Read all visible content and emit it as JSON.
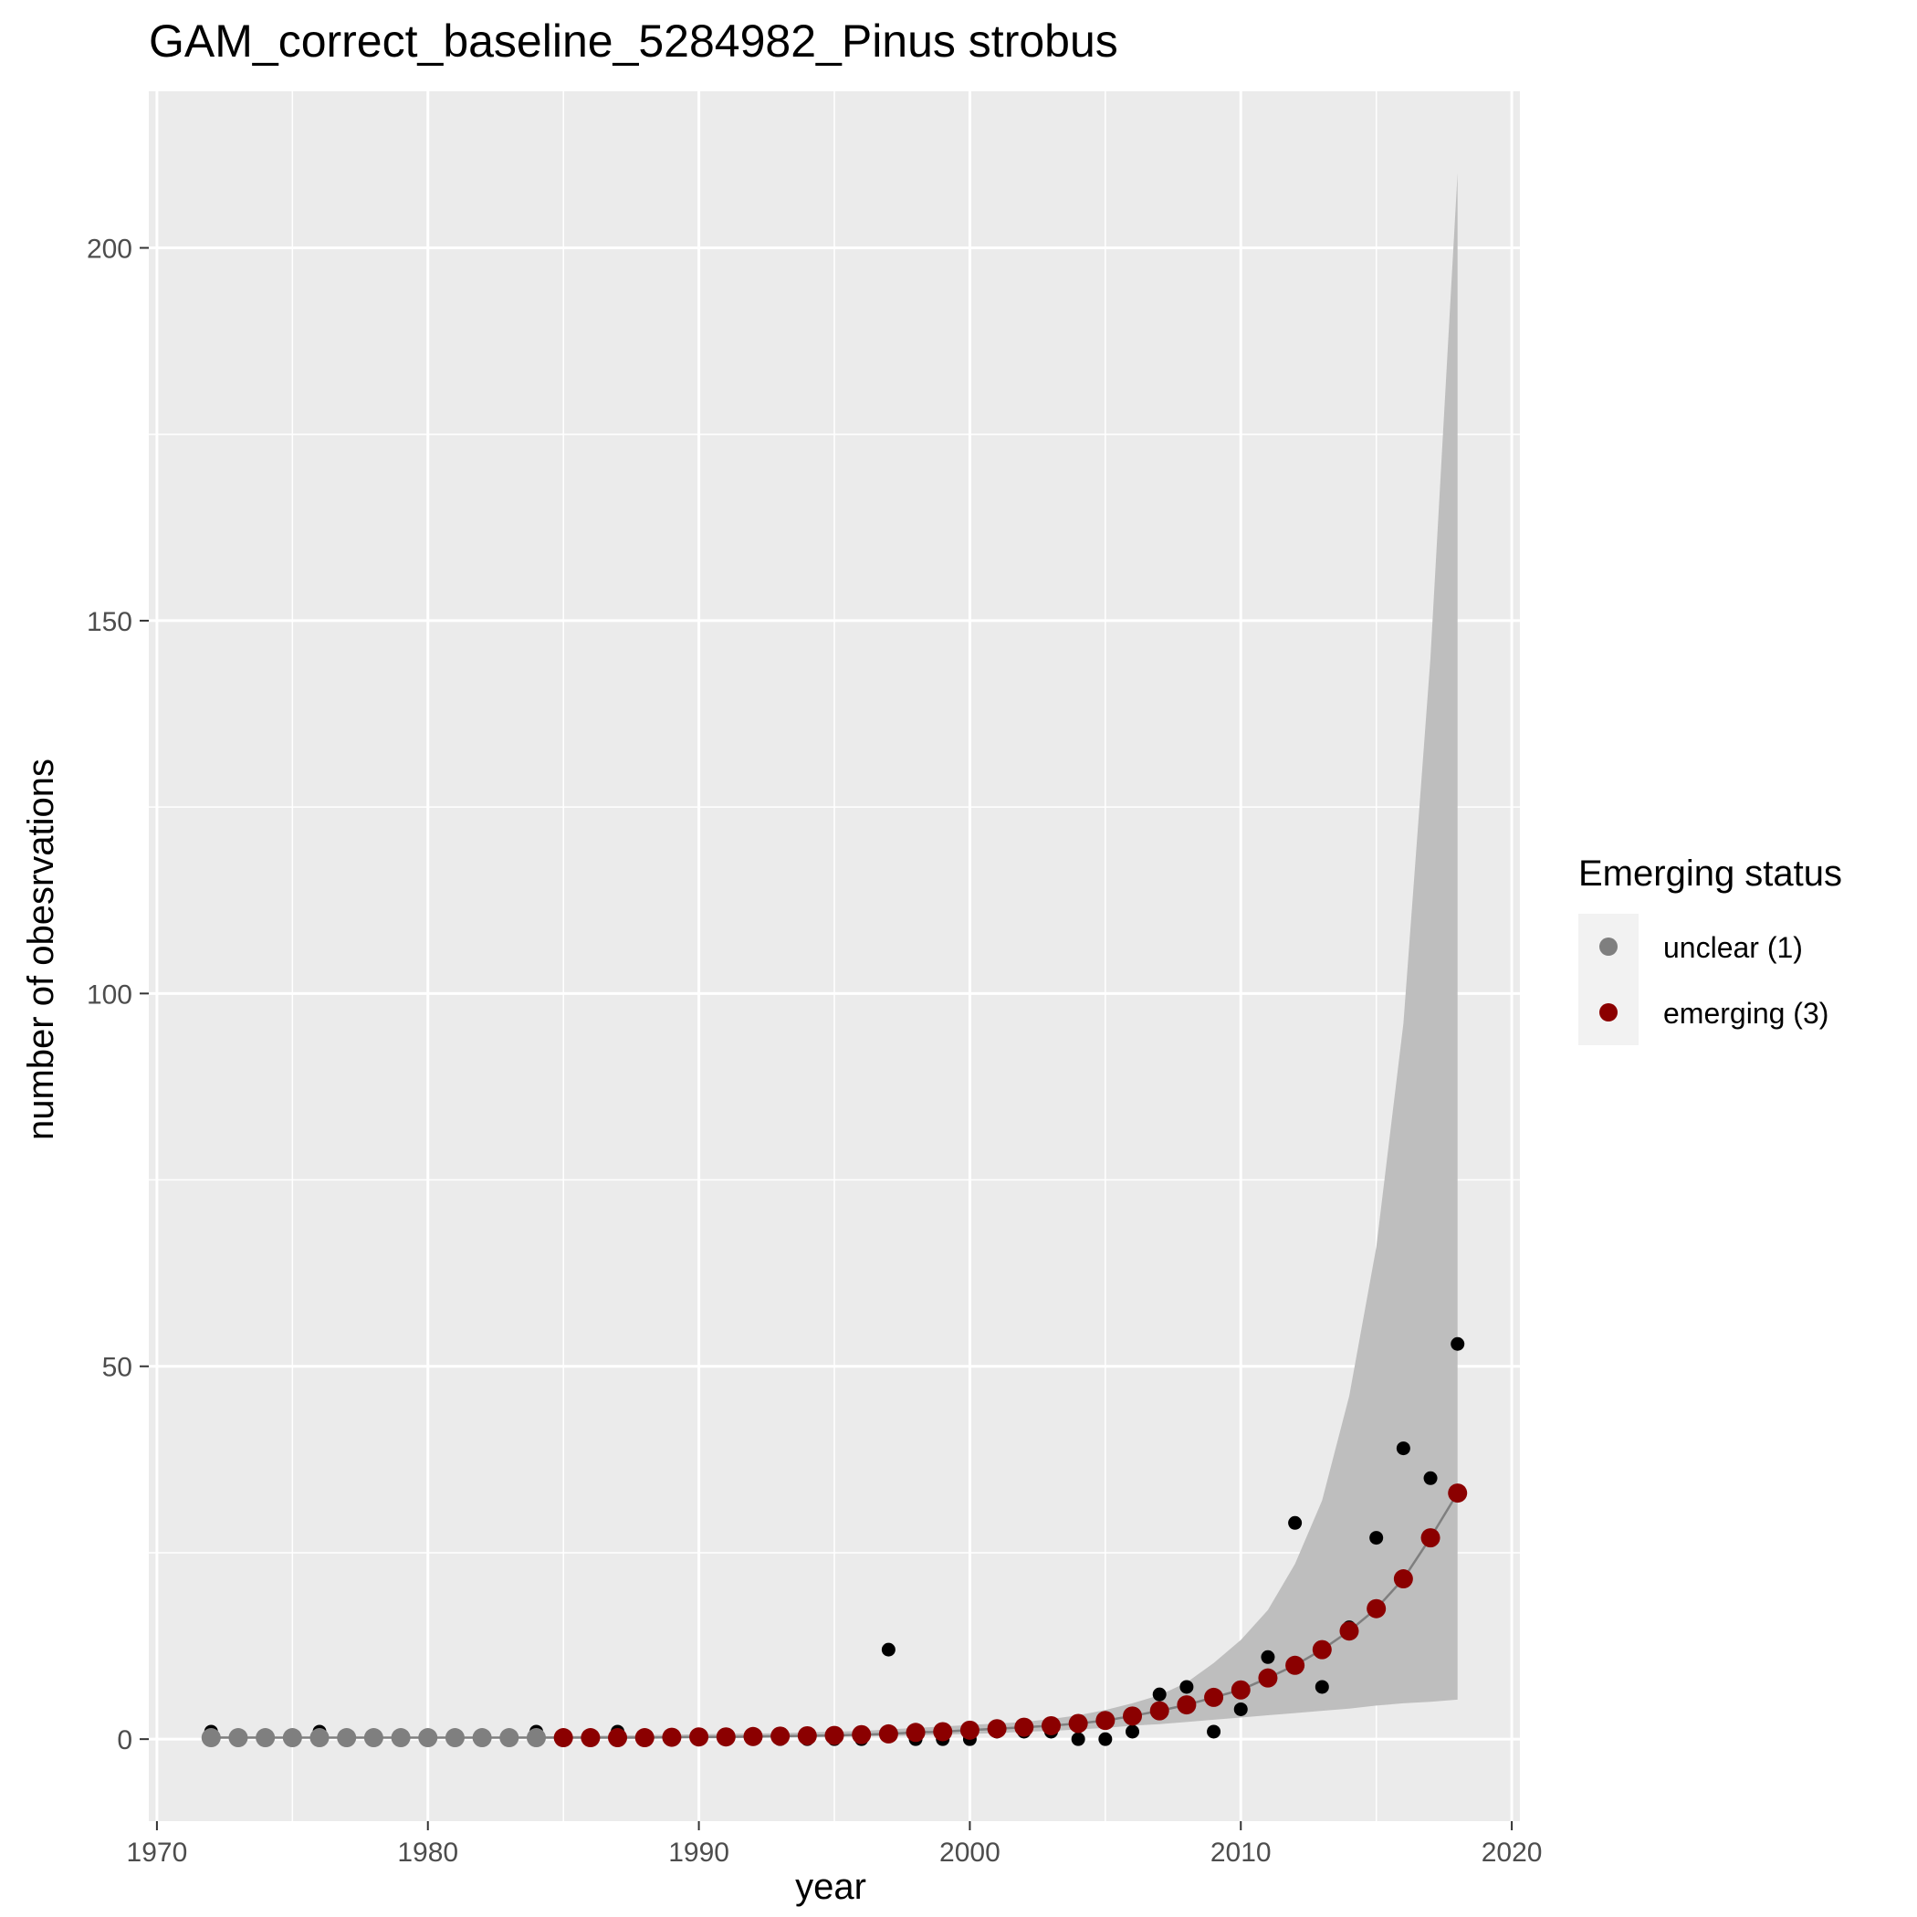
{
  "chart_data": {
    "type": "scatter",
    "title": "GAM_correct_baseline_5284982_Pinus strobus",
    "xlabel": "year",
    "ylabel": "number of obesrvations",
    "xlim": [
      1969.7,
      2020.3
    ],
    "ylim": [
      -11,
      221
    ],
    "x_ticks": [
      1970,
      1980,
      1990,
      2000,
      2010,
      2020
    ],
    "y_ticks": [
      0,
      50,
      100,
      150,
      200
    ],
    "grid": true,
    "legend": {
      "title": "Emerging status",
      "position": "right",
      "entries": [
        {
          "label": "unclear (1)",
          "color": "#7f7f7f"
        },
        {
          "label": "emerging (3)",
          "color": "#8b0000"
        }
      ]
    },
    "colors": {
      "panel_bg": "#ebebeb",
      "grid": "#ffffff",
      "observed": "#000000",
      "ribbon": "#bebebe",
      "fit_line": "#7f7f7f",
      "unclear": "#7f7f7f",
      "emerging": "#8b0000"
    },
    "observed": {
      "x": [
        1972,
        1973,
        1974,
        1975,
        1976,
        1977,
        1978,
        1979,
        1980,
        1981,
        1982,
        1983,
        1984,
        1985,
        1986,
        1987,
        1988,
        1989,
        1990,
        1991,
        1992,
        1993,
        1994,
        1995,
        1996,
        1997,
        1998,
        1999,
        2000,
        2001,
        2002,
        2003,
        2004,
        2005,
        2006,
        2007,
        2008,
        2009,
        2010,
        2011,
        2012,
        2013,
        2014,
        2015,
        2016,
        2017,
        2018
      ],
      "y": [
        1,
        0,
        0,
        0,
        1,
        0,
        0,
        0,
        0,
        0,
        0,
        0,
        1,
        0,
        0,
        1,
        0,
        0,
        0,
        0,
        0,
        0,
        0,
        0,
        0,
        12,
        0,
        0,
        0,
        1,
        1,
        1,
        0,
        0,
        1,
        6,
        7,
        1,
        4,
        11,
        29,
        7,
        15,
        27,
        39,
        35,
        53
      ]
    },
    "fitted": {
      "x": [
        1972,
        1973,
        1974,
        1975,
        1976,
        1977,
        1978,
        1979,
        1980,
        1981,
        1982,
        1983,
        1984,
        1985,
        1986,
        1987,
        1988,
        1989,
        1990,
        1991,
        1992,
        1993,
        1994,
        1995,
        1996,
        1997,
        1998,
        1999,
        2000,
        2001,
        2002,
        2003,
        2004,
        2005,
        2006,
        2007,
        2008,
        2009,
        2010,
        2011,
        2012,
        2013,
        2014,
        2015,
        2016,
        2017,
        2018
      ],
      "y": [
        0.2,
        0.2,
        0.2,
        0.2,
        0.2,
        0.2,
        0.2,
        0.2,
        0.2,
        0.2,
        0.2,
        0.2,
        0.2,
        0.2,
        0.2,
        0.2,
        0.2,
        0.25,
        0.3,
        0.3,
        0.35,
        0.4,
        0.45,
        0.5,
        0.6,
        0.7,
        0.9,
        1.0,
        1.2,
        1.4,
        1.6,
        1.8,
        2.1,
        2.5,
        3.1,
        3.8,
        4.6,
        5.6,
        6.6,
        8.2,
        9.9,
        12.0,
        14.5,
        17.5,
        21.5,
        27.0,
        33.0
      ],
      "status": [
        "unclear",
        "unclear",
        "unclear",
        "unclear",
        "unclear",
        "unclear",
        "unclear",
        "unclear",
        "unclear",
        "unclear",
        "unclear",
        "unclear",
        "unclear",
        "emerging",
        "emerging",
        "emerging",
        "emerging",
        "emerging",
        "emerging",
        "emerging",
        "emerging",
        "emerging",
        "emerging",
        "emerging",
        "emerging",
        "emerging",
        "emerging",
        "emerging",
        "emerging",
        "emerging",
        "emerging",
        "emerging",
        "emerging",
        "emerging",
        "emerging",
        "emerging",
        "emerging",
        "emerging",
        "emerging",
        "emerging",
        "emerging",
        "emerging",
        "emerging",
        "emerging",
        "emerging",
        "emerging",
        "emerging"
      ],
      "lower": [
        0.1,
        0.1,
        0.1,
        0.1,
        0.1,
        0.1,
        0.1,
        0.1,
        0.1,
        0.1,
        0.1,
        0.1,
        0.1,
        0.1,
        0.1,
        0.1,
        0.1,
        0.1,
        0.1,
        0.1,
        0.15,
        0.2,
        0.25,
        0.3,
        0.35,
        0.4,
        0.5,
        0.6,
        0.7,
        0.8,
        1.0,
        1.1,
        1.3,
        1.5,
        1.8,
        2.0,
        2.3,
        2.6,
        2.9,
        3.2,
        3.5,
        3.8,
        4.1,
        4.5,
        4.8,
        5.0,
        5.3
      ],
      "upper": [
        0.4,
        0.35,
        0.35,
        0.3,
        0.3,
        0.3,
        0.3,
        0.3,
        0.3,
        0.3,
        0.3,
        0.35,
        0.35,
        0.4,
        0.45,
        0.5,
        0.55,
        0.6,
        0.65,
        0.7,
        0.75,
        0.8,
        0.9,
        1.0,
        1.1,
        1.3,
        1.5,
        1.7,
        1.9,
        2.1,
        2.3,
        2.7,
        3.2,
        3.9,
        4.8,
        5.9,
        7.6,
        10.2,
        13.3,
        17.3,
        23.5,
        32.0,
        46.0,
        66.0,
        96.0,
        145.0,
        210.0
      ]
    }
  }
}
